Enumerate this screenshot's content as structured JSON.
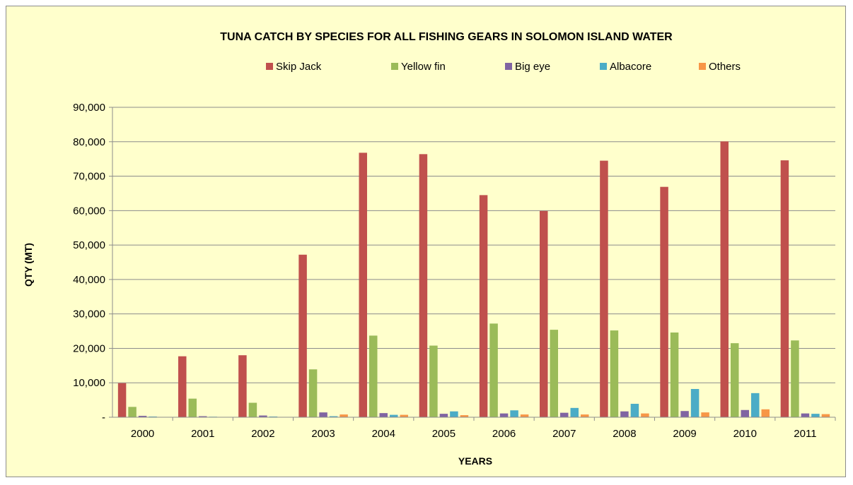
{
  "chart_data": {
    "type": "bar",
    "title": "TUNA CATCH BY SPECIES FOR ALL FISHING GEARS IN SOLOMON ISLAND WATER",
    "xlabel": "YEARS",
    "ylabel": "QTY (MT)",
    "ylim": [
      0,
      90000
    ],
    "yticks": [
      "-",
      "10,000",
      "20,000",
      "30,000",
      "40,000",
      "50,000",
      "60,000",
      "70,000",
      "80,000",
      "90,000"
    ],
    "grid": true,
    "legend_position": "top",
    "categories": [
      "2000",
      "2001",
      "2002",
      "2003",
      "2004",
      "2005",
      "2006",
      "2007",
      "2008",
      "2009",
      "2010",
      "2011"
    ],
    "series": [
      {
        "name": "Skip Jack",
        "color": "#c0504d",
        "values": [
          9900,
          17700,
          18000,
          47200,
          76800,
          76400,
          64500,
          59900,
          74500,
          66900,
          80100,
          74600
        ]
      },
      {
        "name": "Yellow fin",
        "color": "#9bbb59",
        "values": [
          3000,
          5400,
          4200,
          13900,
          23700,
          20800,
          27200,
          25400,
          25200,
          24600,
          21500,
          22300
        ]
      },
      {
        "name": "Big eye",
        "color": "#8064a2",
        "values": [
          400,
          300,
          500,
          1400,
          1200,
          1000,
          1100,
          1300,
          1700,
          1800,
          2100,
          1100
        ]
      },
      {
        "name": "Albacore",
        "color": "#4bacc6",
        "values": [
          200,
          150,
          200,
          300,
          700,
          1700,
          2000,
          2700,
          3900,
          8200,
          7000,
          1000
        ]
      },
      {
        "name": "Others",
        "color": "#f79646",
        "values": [
          100,
          100,
          100,
          800,
          700,
          600,
          800,
          800,
          1100,
          1400,
          2300,
          900
        ]
      }
    ]
  }
}
